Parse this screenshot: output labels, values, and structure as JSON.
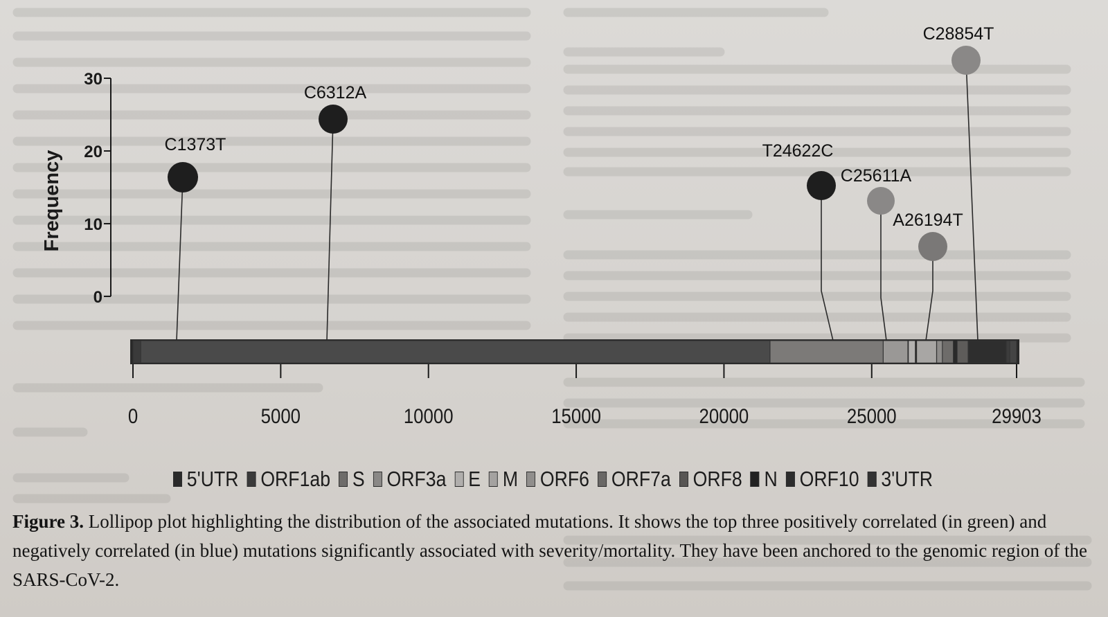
{
  "chart_data": {
    "type": "lollipop",
    "ylabel": "Frequency",
    "ylim": [
      0,
      30
    ],
    "y_ticks": [
      "0",
      "10",
      "20",
      "30"
    ],
    "xlim": [
      0,
      29903
    ],
    "x_ticks": [
      "0",
      "5000",
      "10000",
      "15000",
      "20000",
      "25000",
      "29903"
    ],
    "mutations": [
      {
        "label": "C1373T",
        "position": 1373,
        "frequency": 18.5,
        "color": "#1e1e1e"
      },
      {
        "label": "C6312A",
        "position": 6312,
        "frequency": 26.5,
        "color": "#1e1e1e"
      },
      {
        "label": "T24622C",
        "position": 24622,
        "frequency": 17.5,
        "color": "#1e1e1e"
      },
      {
        "label": "C25611A",
        "position": 25611,
        "frequency": 15.5,
        "color": "#8a8887"
      },
      {
        "label": "A26194T",
        "position": 26194,
        "frequency": 8.5,
        "color": "#7a7877"
      },
      {
        "label": "C28854T",
        "position": 28854,
        "frequency": 35,
        "color": "#8a8887"
      }
    ],
    "genome_regions": [
      {
        "name": "5'UTR",
        "start": 0,
        "end": 265,
        "color": "#3a3a3a"
      },
      {
        "name": "ORF1ab",
        "start": 266,
        "end": 21555,
        "color": "#4a4a4a"
      },
      {
        "name": "S",
        "start": 21563,
        "end": 25384,
        "color": "#7c7a78"
      },
      {
        "name": "ORF3a",
        "start": 25393,
        "end": 26220,
        "color": "#9a9896"
      },
      {
        "name": "E",
        "start": 26245,
        "end": 26472,
        "color": "#b4b2b0"
      },
      {
        "name": "M",
        "start": 26523,
        "end": 27191,
        "color": "#a8a6a4"
      },
      {
        "name": "ORF6",
        "start": 27202,
        "end": 27387,
        "color": "#8e8c8a"
      },
      {
        "name": "ORF7a",
        "start": 27394,
        "end": 27759,
        "color": "#6e6c6a"
      },
      {
        "name": "ORF8",
        "start": 27894,
        "end": 28259,
        "color": "#5e5c5a"
      },
      {
        "name": "N",
        "start": 28274,
        "end": 29533,
        "color": "#2e2e2e"
      },
      {
        "name": "ORF10",
        "start": 29558,
        "end": 29674,
        "color": "#3c3c3c"
      },
      {
        "name": "3'UTR",
        "start": 29675,
        "end": 29903,
        "color": "#444444"
      }
    ]
  },
  "legend": {
    "items": [
      {
        "label": "5'UTR",
        "color": "#2a2a2a"
      },
      {
        "label": "ORF1ab",
        "color": "#3a3a3a"
      },
      {
        "label": "S",
        "color": "#6e6c6a"
      },
      {
        "label": "ORF3a",
        "color": "#8a8886"
      },
      {
        "label": "E",
        "color": "#b0aeac"
      },
      {
        "label": "M",
        "color": "#a4a2a0"
      },
      {
        "label": "ORF6",
        "color": "#908e8c"
      },
      {
        "label": "ORF7a",
        "color": "#6a6866"
      },
      {
        "label": "ORF8",
        "color": "#585654"
      },
      {
        "label": "N",
        "color": "#222222"
      },
      {
        "label": "ORF10",
        "color": "#2c2c2c"
      },
      {
        "label": "3'UTR",
        "color": "#333333"
      }
    ]
  },
  "caption": {
    "label": "Figure 3.",
    "text": " Lollipop plot highlighting the distribution of the associated mutations. It shows the top three positively correlated (in green) and negatively correlated (in blue) mutations significantly associated with severity/mortality. They have been anchored to the genomic region of the SARS-CoV-2."
  }
}
